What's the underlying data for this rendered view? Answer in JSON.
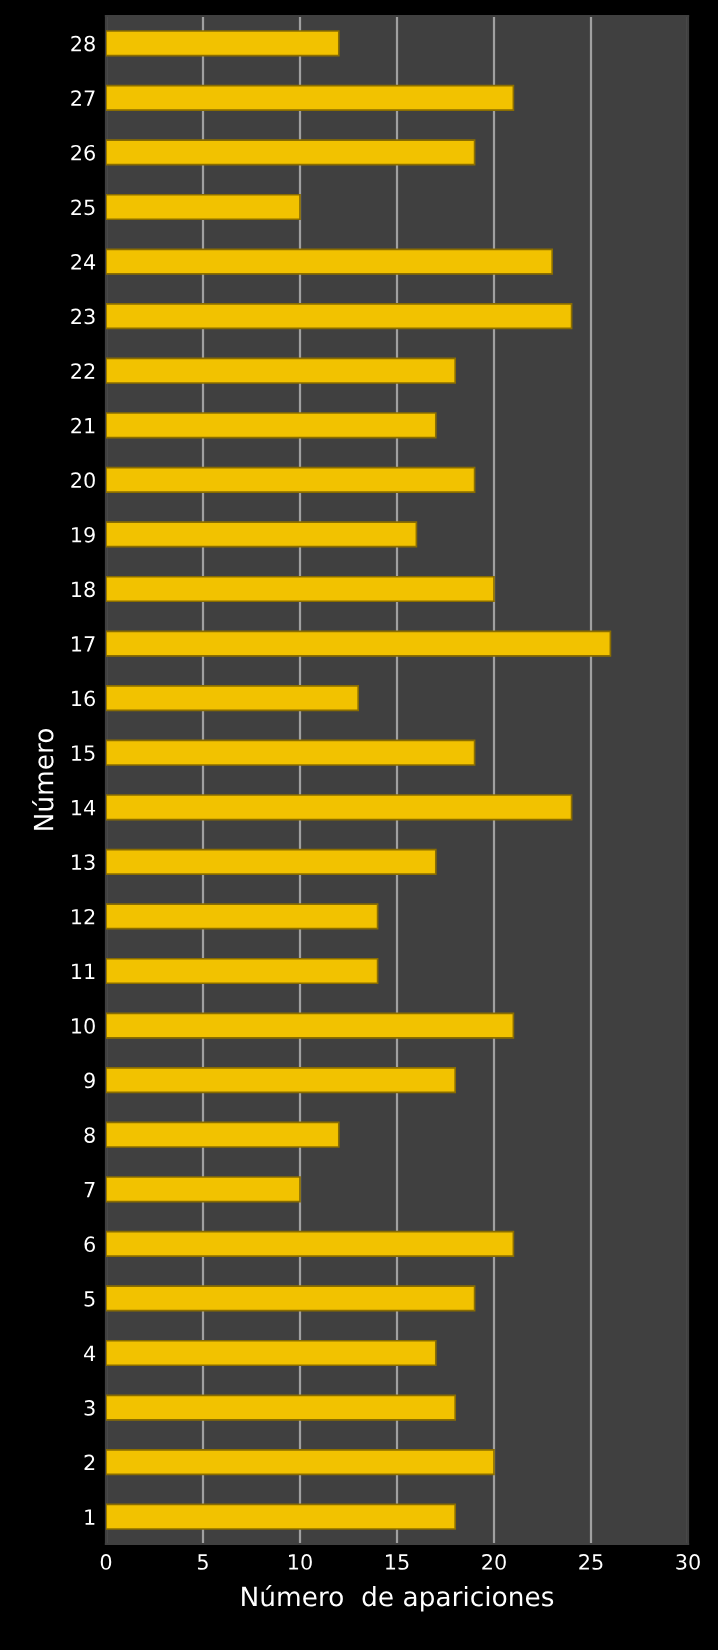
{
  "chart_data": {
    "type": "bar",
    "orientation": "horizontal",
    "xlabel": "Número  de apariciones",
    "ylabel": "Número",
    "categories": [
      "28",
      "27",
      "26",
      "25",
      "24",
      "23",
      "22",
      "21",
      "20",
      "19",
      "18",
      "17",
      "16",
      "15",
      "14",
      "13",
      "12",
      "11",
      "10",
      "9",
      "8",
      "7",
      "6",
      "5",
      "4",
      "3",
      "2",
      "1"
    ],
    "values": [
      12,
      21,
      19,
      10,
      23,
      24,
      18,
      17,
      19,
      16,
      20,
      26,
      13,
      19,
      24,
      17,
      14,
      14,
      21,
      18,
      12,
      10,
      21,
      19,
      17,
      18,
      20,
      18
    ],
    "color": "#f2c200",
    "xlim": [
      0,
      30
    ],
    "xticks": [
      0,
      5,
      10,
      15,
      20,
      25,
      30
    ],
    "grid": "x"
  }
}
